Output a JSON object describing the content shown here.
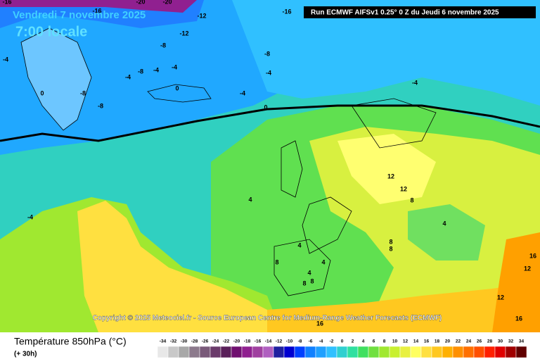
{
  "header": {
    "date": "Vendredi 7 novembre 2025",
    "time": "7:00 locale",
    "run": "Run ECMWF AIFSv1 0.25° 0 Z du Jeudi 6 novembre 2025"
  },
  "copyright": "Copyright © 2025 Meteociel.fr - Source European Centre for Medium-Range Weather Forecasts (ECMWF)",
  "legend": {
    "title": "Température 850hPa (°C)",
    "subtitle": "(+ 30h)",
    "ticks": [
      -34,
      -32,
      -30,
      -28,
      -26,
      -24,
      -22,
      -20,
      -18,
      -16,
      -14,
      -12,
      -10,
      -8,
      -6,
      -4,
      -2,
      0,
      2,
      4,
      6,
      8,
      10,
      12,
      14,
      16,
      18,
      20,
      22,
      24,
      26,
      28,
      30,
      32,
      34
    ],
    "colors": [
      "#e8e8e8",
      "#c8c8c8",
      "#a8a8a8",
      "#8c7a8c",
      "#7a5a7a",
      "#6a3a6a",
      "#5a205a",
      "#701070",
      "#902090",
      "#a040a0",
      "#b060c0",
      "#2020a0",
      "#0000d0",
      "#0040ff",
      "#1080ff",
      "#20a0ff",
      "#30c0ff",
      "#30d0d0",
      "#30e0a0",
      "#40e060",
      "#70e040",
      "#a0e830",
      "#c8f030",
      "#e8f040",
      "#ffff60",
      "#ffe040",
      "#ffc820",
      "#ffb000",
      "#ff9000",
      "#ff7000",
      "#ff5000",
      "#ff2000",
      "#e00000",
      "#a00000",
      "#600000"
    ]
  },
  "contour_labels": [
    -16,
    -20,
    -20,
    -16,
    -12,
    -16,
    -12,
    -8,
    -8,
    -4,
    -4,
    -4,
    -8,
    -4,
    -4,
    -8,
    0,
    -8,
    0,
    -4,
    -4,
    0,
    12,
    12,
    8,
    4,
    -4,
    4,
    4,
    8,
    8,
    4,
    8,
    4,
    8,
    8,
    16,
    12,
    12,
    16,
    16
  ]
}
